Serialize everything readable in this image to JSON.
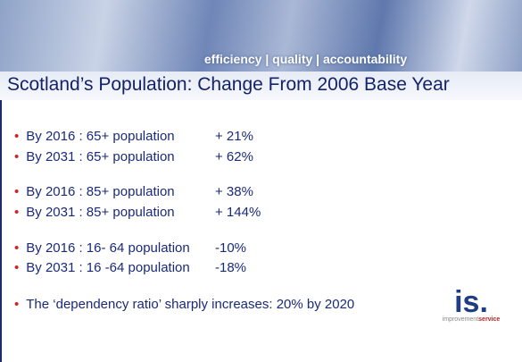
{
  "header": {
    "tagline": "efficiency | quality | accountability"
  },
  "title": "Scotland’s Population: Change From 2006 Base Year",
  "groups": [
    [
      {
        "label": "By 2016 : 65+ population",
        "value": "+ 21%"
      },
      {
        "label": "By 2031 : 65+ population",
        "value": "+ 62%"
      }
    ],
    [
      {
        "label": "By 2016 : 85+ population",
        "value": "+ 38%"
      },
      {
        "label": "By 2031 : 85+ population",
        "value": "+ 144%"
      }
    ],
    [
      {
        "label": "By 2016 : 16- 64 population",
        "value": "-10%"
      },
      {
        "label": "By 2031 : 16 -64 population",
        "value": "-18%"
      }
    ]
  ],
  "final_bullet": "The ‘dependency ratio’ sharply increases: 20% by 2020",
  "logo": {
    "mark": "is.",
    "word1": "improvement",
    "word2": "service"
  }
}
